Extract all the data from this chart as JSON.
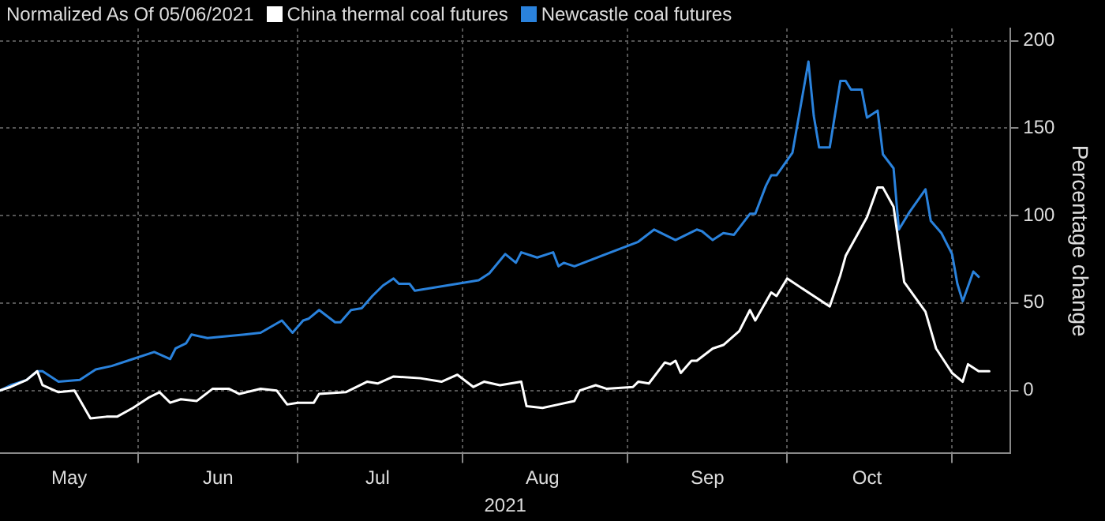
{
  "chart_data": {
    "type": "line",
    "legend_title": "Normalized As Of 05/06/2021",
    "xlabel": "2021",
    "ylabel": "Percentage change",
    "legend": "top left",
    "grid": true,
    "marker": "none",
    "line_style": "solid",
    "xlim": [
      "2021-05-06",
      "2021-11-12"
    ],
    "xticks": [
      {
        "value": "2021-05-19",
        "label": "May"
      },
      {
        "value": "2021-06-01",
        "label": null
      },
      {
        "value": "2021-06-16",
        "label": "Jun"
      },
      {
        "value": "2021-07-01",
        "label": null
      },
      {
        "value": "2021-07-16",
        "label": "Jul"
      },
      {
        "value": "2021-08-01",
        "label": null
      },
      {
        "value": "2021-08-16",
        "label": "Aug"
      },
      {
        "value": "2021-09-01",
        "label": null
      },
      {
        "value": "2021-09-16",
        "label": "Sep"
      },
      {
        "value": "2021-10-01",
        "label": null
      },
      {
        "value": "2021-10-16",
        "label": "Oct"
      },
      {
        "value": "2021-11-01",
        "label": null
      }
    ],
    "ylim": [
      -36,
      207
    ],
    "yticks": [
      0,
      50,
      100,
      150,
      200
    ],
    "series": [
      {
        "name": "China thermal coal futures",
        "color": "#ffffff",
        "x": [
          "2021-05-06",
          "2021-05-08",
          "2021-05-11",
          "2021-05-13",
          "2021-05-14",
          "2021-05-17",
          "2021-05-20",
          "2021-05-23",
          "2021-05-26",
          "2021-05-28",
          "2021-05-31",
          "2021-06-03",
          "2021-06-05",
          "2021-06-07",
          "2021-06-09",
          "2021-06-12",
          "2021-06-15",
          "2021-06-18",
          "2021-06-20",
          "2021-06-24",
          "2021-06-27",
          "2021-06-29",
          "2021-07-01",
          "2021-07-04",
          "2021-07-05",
          "2021-07-10",
          "2021-07-14",
          "2021-07-16",
          "2021-07-19",
          "2021-07-24",
          "2021-07-28",
          "2021-07-31",
          "2021-08-03",
          "2021-08-05",
          "2021-08-08",
          "2021-08-12",
          "2021-08-13",
          "2021-08-16",
          "2021-08-19",
          "2021-08-22",
          "2021-08-23",
          "2021-08-26",
          "2021-08-28",
          "2021-09-02",
          "2021-09-03",
          "2021-09-05",
          "2021-09-08",
          "2021-09-09",
          "2021-09-10",
          "2021-09-11",
          "2021-09-13",
          "2021-09-14",
          "2021-09-17",
          "2021-09-19",
          "2021-09-22",
          "2021-09-24",
          "2021-09-25",
          "2021-09-28",
          "2021-09-29",
          "2021-10-01",
          "2021-10-09",
          "2021-10-11",
          "2021-10-12",
          "2021-10-16",
          "2021-10-18",
          "2021-10-19",
          "2021-10-21",
          "2021-10-23",
          "2021-10-27",
          "2021-10-29",
          "2021-11-01",
          "2021-11-03",
          "2021-11-04",
          "2021-11-06",
          "2021-11-08"
        ],
        "values": [
          0,
          2,
          6,
          11,
          3,
          -1,
          0,
          -16,
          -15,
          -15,
          -10,
          -4,
          -1,
          -7,
          -5,
          -6,
          1,
          1,
          -2,
          1,
          0,
          -8,
          -7,
          -7,
          -2,
          -1,
          5,
          4,
          8,
          7,
          5,
          9,
          2,
          5,
          3,
          5,
          -9,
          -10,
          -8,
          -6,
          0,
          3,
          1,
          2,
          5,
          4,
          16,
          15,
          17,
          10,
          17,
          17,
          24,
          26,
          34,
          46,
          40,
          56,
          54,
          64,
          48,
          66,
          77,
          99,
          116,
          116,
          105,
          62,
          45,
          24,
          10,
          5,
          15,
          11,
          11
        ]
      },
      {
        "name": "Newcastle coal futures",
        "color": "#2a82dc",
        "x": [
          "2021-05-06",
          "2021-05-08",
          "2021-05-11",
          "2021-05-13",
          "2021-05-14",
          "2021-05-17",
          "2021-05-21",
          "2021-05-24",
          "2021-05-27",
          "2021-05-31",
          "2021-06-04",
          "2021-06-07",
          "2021-06-08",
          "2021-06-10",
          "2021-06-11",
          "2021-06-14",
          "2021-06-21",
          "2021-06-24",
          "2021-06-28",
          "2021-06-30",
          "2021-07-02",
          "2021-07-03",
          "2021-07-05",
          "2021-07-08",
          "2021-07-09",
          "2021-07-11",
          "2021-07-13",
          "2021-07-15",
          "2021-07-17",
          "2021-07-19",
          "2021-07-20",
          "2021-07-22",
          "2021-07-23",
          "2021-08-02",
          "2021-08-04",
          "2021-08-06",
          "2021-08-09",
          "2021-08-11",
          "2021-08-12",
          "2021-08-15",
          "2021-08-18",
          "2021-08-19",
          "2021-08-20",
          "2021-08-22",
          "2021-09-03",
          "2021-09-06",
          "2021-09-10",
          "2021-09-14",
          "2021-09-15",
          "2021-09-17",
          "2021-09-19",
          "2021-09-21",
          "2021-09-24",
          "2021-09-25",
          "2021-09-27",
          "2021-09-28",
          "2021-09-29",
          "2021-10-02",
          "2021-10-05",
          "2021-10-06",
          "2021-10-07",
          "2021-10-09",
          "2021-10-11",
          "2021-10-12",
          "2021-10-13",
          "2021-10-15",
          "2021-10-16",
          "2021-10-18",
          "2021-10-19",
          "2021-10-21",
          "2021-10-22",
          "2021-10-24",
          "2021-10-27",
          "2021-10-28",
          "2021-10-30",
          "2021-11-01",
          "2021-11-02",
          "2021-11-03",
          "2021-11-05",
          "2021-11-06"
        ],
        "values": [
          0,
          3,
          6,
          11,
          11,
          5,
          6,
          12,
          14,
          18,
          22,
          18,
          24,
          27,
          32,
          30,
          32,
          33,
          40,
          33,
          40,
          41,
          46,
          39,
          39,
          46,
          47,
          54,
          60,
          64,
          61,
          61,
          57,
          62,
          63,
          67,
          78,
          73,
          79,
          76,
          79,
          71,
          73,
          71,
          85,
          92,
          86,
          92,
          91,
          86,
          90,
          89,
          101,
          101,
          117,
          123,
          123,
          136,
          188,
          157,
          139,
          139,
          177,
          177,
          172,
          172,
          156,
          160,
          135,
          127,
          92,
          102,
          115,
          97,
          90,
          78,
          61,
          51,
          68,
          65
        ]
      }
    ]
  }
}
